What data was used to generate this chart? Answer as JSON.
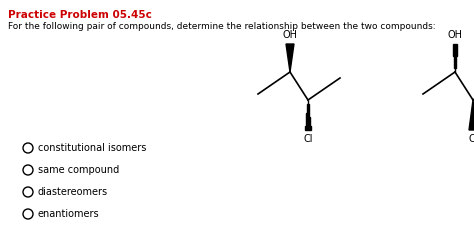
{
  "title": "Practice Problem 05.45c",
  "title_color": "#cc0000",
  "subtitle": "For the following pair of compounds, determine the relationship between the two compounds:",
  "subtitle_color": "#000000",
  "options": [
    "constitutional isomers",
    "same compound",
    "diastereomers",
    "enantiomers"
  ],
  "background_color": "#ffffff",
  "text_color": "#000000",
  "figsize": [
    4.74,
    2.33
  ],
  "dpi": 100
}
